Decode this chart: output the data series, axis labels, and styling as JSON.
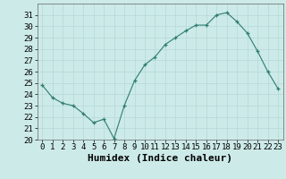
{
  "x": [
    0,
    1,
    2,
    3,
    4,
    5,
    6,
    7,
    8,
    9,
    10,
    11,
    12,
    13,
    14,
    15,
    16,
    17,
    18,
    19,
    20,
    21,
    22,
    23
  ],
  "y": [
    24.8,
    23.7,
    23.2,
    23.0,
    22.3,
    21.5,
    21.8,
    20.1,
    23.0,
    25.2,
    26.6,
    27.3,
    28.4,
    29.0,
    29.6,
    30.1,
    30.1,
    31.0,
    31.2,
    30.4,
    29.4,
    27.8,
    26.0,
    24.5
  ],
  "xlabel": "Humidex (Indice chaleur)",
  "xlim": [
    -0.5,
    23.5
  ],
  "ylim": [
    20,
    32
  ],
  "yticks": [
    20,
    21,
    22,
    23,
    24,
    25,
    26,
    27,
    28,
    29,
    30,
    31
  ],
  "xticks": [
    0,
    1,
    2,
    3,
    4,
    5,
    6,
    7,
    8,
    9,
    10,
    11,
    12,
    13,
    14,
    15,
    16,
    17,
    18,
    19,
    20,
    21,
    22,
    23
  ],
  "line_color": "#2d7d6e",
  "bg_color": "#cceae8",
  "grid_color": "#b8dbd9",
  "xlabel_fontsize": 8,
  "tick_fontsize": 6.5
}
